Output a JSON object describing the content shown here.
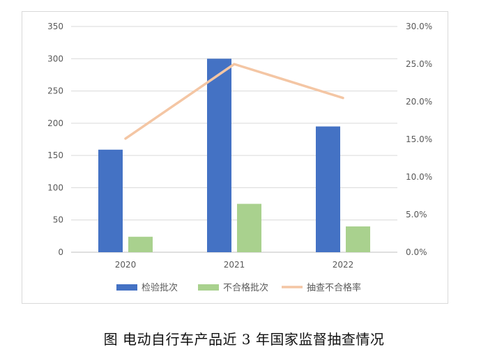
{
  "caption": "图 电动自行车产品近 3 年国家监督抽查情况",
  "chart_data": {
    "type": "bar",
    "categories": [
      "2020",
      "2021",
      "2022"
    ],
    "series": [
      {
        "name": "检验批次",
        "type": "bar",
        "axis": "left",
        "color": "#4472c4",
        "values": [
          159,
          300,
          195
        ]
      },
      {
        "name": "不合格批次",
        "type": "bar",
        "axis": "left",
        "color": "#a9d18e",
        "values": [
          24,
          75,
          40
        ]
      },
      {
        "name": "抽查不合格率",
        "type": "line",
        "axis": "right",
        "color": "#f4c6a4",
        "values": [
          0.151,
          0.25,
          0.205
        ]
      }
    ],
    "y_left": {
      "min": 0,
      "max": 350,
      "ticks": [
        "0",
        "50",
        "100",
        "150",
        "200",
        "250",
        "300",
        "350"
      ]
    },
    "y_right": {
      "min": 0,
      "max": 0.3,
      "ticks": [
        "0.0%",
        "5.0%",
        "10.0%",
        "15.0%",
        "20.0%",
        "25.0%",
        "30.0%"
      ]
    },
    "grid": true,
    "legend_position": "bottom"
  }
}
